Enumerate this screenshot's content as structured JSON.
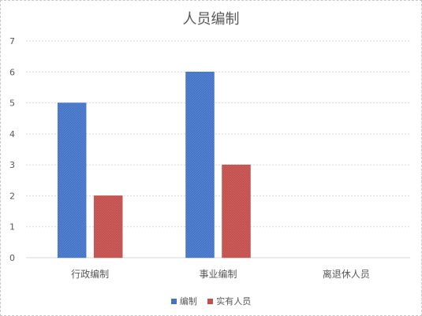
{
  "chart_data": {
    "type": "bar",
    "title": "人员编制",
    "categories": [
      "行政编制",
      "事业编制",
      "离退休人员"
    ],
    "series": [
      {
        "name": "编制",
        "values": [
          5,
          6,
          null
        ],
        "color": "#4472C4"
      },
      {
        "name": "实有人员",
        "values": [
          2,
          3,
          null
        ],
        "color": "#C0504D"
      }
    ],
    "ylim": [
      0,
      7
    ],
    "yticks": [
      0,
      1,
      2,
      3,
      4,
      5,
      6,
      7
    ],
    "grid": true,
    "legend_position": "bottom"
  }
}
